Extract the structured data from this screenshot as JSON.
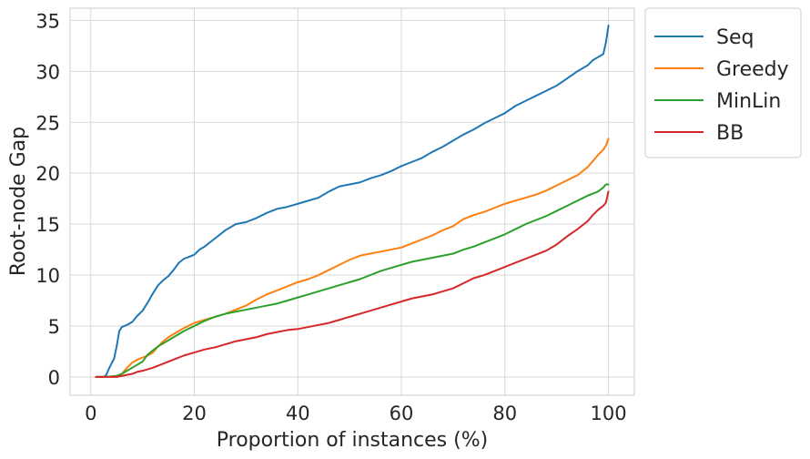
{
  "chart_data": {
    "type": "line",
    "title": "",
    "xlabel": "Proportion of instances (%)",
    "ylabel": "Root-node Gap",
    "xlim": [
      -4,
      105
    ],
    "ylim": [
      -1.8,
      36.2
    ],
    "xticks": [
      0,
      20,
      40,
      60,
      80,
      100
    ],
    "yticks": [
      0,
      5,
      10,
      15,
      20,
      25,
      30,
      35
    ],
    "grid": true,
    "legend_position": "outside-top-right",
    "series": [
      {
        "name": "Seq",
        "color": "#1f77b4",
        "x": [
          1,
          2.5,
          3,
          3.5,
          4,
          4.5,
          5,
          5.5,
          6,
          6.5,
          7,
          8,
          9,
          10,
          11,
          12,
          13,
          14,
          15,
          16,
          17,
          18,
          19,
          20,
          21,
          22,
          24,
          26,
          28,
          30,
          32,
          34,
          36,
          38,
          40,
          42,
          44,
          46,
          48,
          50,
          52,
          54,
          56,
          58,
          60,
          62,
          64,
          66,
          68,
          70,
          72,
          74,
          76,
          78,
          80,
          82,
          84,
          86,
          88,
          90,
          92,
          94,
          96,
          97,
          98,
          99,
          99.5,
          100
        ],
        "y": [
          0,
          0,
          0.2,
          0.8,
          1.3,
          1.8,
          3.0,
          4.5,
          4.9,
          5.0,
          5.1,
          5.4,
          6.0,
          6.5,
          7.3,
          8.2,
          9.0,
          9.5,
          9.9,
          10.5,
          11.2,
          11.6,
          11.8,
          12.0,
          12.5,
          12.8,
          13.6,
          14.4,
          15.0,
          15.2,
          15.6,
          16.1,
          16.5,
          16.7,
          17.0,
          17.3,
          17.6,
          18.2,
          18.7,
          18.9,
          19.1,
          19.5,
          19.8,
          20.2,
          20.7,
          21.1,
          21.5,
          22.1,
          22.6,
          23.2,
          23.8,
          24.3,
          24.9,
          25.4,
          25.9,
          26.6,
          27.1,
          27.6,
          28.1,
          28.6,
          29.3,
          30.0,
          30.6,
          31.1,
          31.4,
          31.7,
          32.8,
          34.5
        ]
      },
      {
        "name": "Greedy",
        "color": "#ff7f0e",
        "x": [
          1,
          3,
          5,
          6,
          6.5,
          7,
          8,
          9,
          10,
          11,
          12,
          13,
          14,
          15,
          16,
          17,
          18,
          20,
          22,
          24,
          26,
          28,
          30,
          32,
          34,
          36,
          38,
          40,
          42,
          44,
          46,
          48,
          50,
          52,
          54,
          56,
          58,
          60,
          62,
          64,
          66,
          68,
          70,
          72,
          74,
          76,
          78,
          80,
          82,
          84,
          86,
          88,
          90,
          92,
          94,
          96,
          97,
          98,
          99,
          99.5,
          100
        ],
        "y": [
          0,
          0,
          0.1,
          0.3,
          0.6,
          0.9,
          1.4,
          1.7,
          1.9,
          2.1,
          2.4,
          3.0,
          3.5,
          3.9,
          4.2,
          4.5,
          4.8,
          5.3,
          5.6,
          5.9,
          6.2,
          6.6,
          7.0,
          7.6,
          8.1,
          8.5,
          8.9,
          9.3,
          9.6,
          10.0,
          10.5,
          11.0,
          11.5,
          11.9,
          12.1,
          12.3,
          12.5,
          12.7,
          13.1,
          13.5,
          13.9,
          14.4,
          14.8,
          15.5,
          15.9,
          16.2,
          16.6,
          17.0,
          17.3,
          17.6,
          17.9,
          18.3,
          18.8,
          19.3,
          19.8,
          20.6,
          21.2,
          21.8,
          22.3,
          22.7,
          23.4
        ]
      },
      {
        "name": "MinLin",
        "color": "#2ca02c",
        "x": [
          1,
          3,
          5,
          6,
          7,
          8,
          9,
          10,
          11,
          12,
          13,
          14,
          15,
          16,
          17,
          18,
          20,
          22,
          24,
          26,
          28,
          30,
          32,
          34,
          36,
          38,
          40,
          42,
          44,
          46,
          48,
          50,
          52,
          54,
          56,
          58,
          60,
          62,
          64,
          66,
          68,
          70,
          72,
          74,
          76,
          78,
          80,
          82,
          84,
          86,
          88,
          90,
          92,
          94,
          96,
          97,
          98,
          99,
          99.5,
          100
        ],
        "y": [
          0,
          0,
          0.1,
          0.3,
          0.6,
          0.9,
          1.2,
          1.5,
          2.2,
          2.6,
          3.0,
          3.3,
          3.6,
          3.9,
          4.2,
          4.5,
          5.0,
          5.5,
          5.9,
          6.2,
          6.4,
          6.6,
          6.8,
          7.0,
          7.2,
          7.5,
          7.8,
          8.1,
          8.4,
          8.7,
          9.0,
          9.3,
          9.6,
          10.0,
          10.4,
          10.7,
          11.0,
          11.3,
          11.5,
          11.7,
          11.9,
          12.1,
          12.5,
          12.8,
          13.2,
          13.6,
          14.0,
          14.5,
          15.0,
          15.4,
          15.8,
          16.3,
          16.8,
          17.3,
          17.8,
          18.0,
          18.2,
          18.6,
          18.9,
          18.9
        ]
      },
      {
        "name": "BB",
        "color": "#d62728",
        "x": [
          1,
          3,
          5,
          6,
          7,
          8,
          9,
          10,
          12,
          14,
          16,
          18,
          20,
          22,
          24,
          26,
          28,
          30,
          32,
          34,
          36,
          38,
          40,
          42,
          44,
          46,
          48,
          50,
          52,
          54,
          56,
          58,
          60,
          62,
          64,
          66,
          68,
          70,
          72,
          74,
          76,
          78,
          80,
          82,
          84,
          86,
          88,
          90,
          92,
          94,
          96,
          97,
          98,
          99,
          99.5,
          100
        ],
        "y": [
          0,
          0,
          0,
          0.1,
          0.2,
          0.3,
          0.5,
          0.6,
          0.9,
          1.3,
          1.7,
          2.1,
          2.4,
          2.7,
          2.9,
          3.2,
          3.5,
          3.7,
          3.9,
          4.2,
          4.4,
          4.6,
          4.7,
          4.9,
          5.1,
          5.3,
          5.6,
          5.9,
          6.2,
          6.5,
          6.8,
          7.1,
          7.4,
          7.7,
          7.9,
          8.1,
          8.4,
          8.7,
          9.2,
          9.7,
          10.0,
          10.4,
          10.8,
          11.2,
          11.6,
          12.0,
          12.4,
          13.0,
          13.8,
          14.5,
          15.3,
          15.9,
          16.4,
          16.8,
          17.1,
          18.2
        ]
      }
    ]
  }
}
